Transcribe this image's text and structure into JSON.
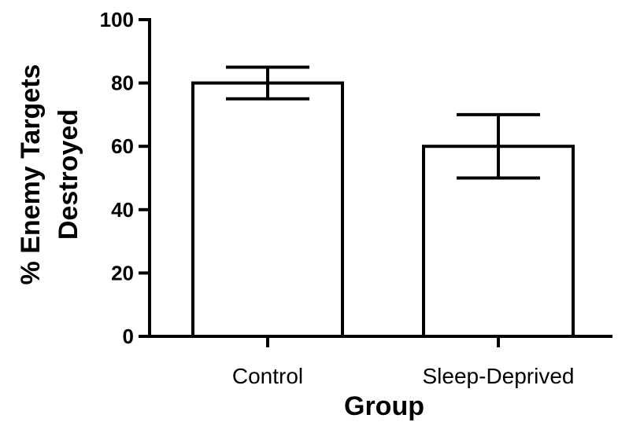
{
  "chart_data": {
    "type": "bar",
    "title": "",
    "xlabel": "Group",
    "ylabel_lines": [
      "% Enemy Targets",
      "Destroyed"
    ],
    "categories": [
      "Control",
      "Sleep-Deprived"
    ],
    "values": [
      80,
      60
    ],
    "error_low": [
      75,
      50
    ],
    "error_high": [
      85,
      70
    ],
    "ylim": [
      0,
      100
    ],
    "yticks": [
      0,
      20,
      40,
      60,
      80,
      100
    ],
    "grid": false,
    "legend": "none",
    "bar_fill": "#ffffff",
    "stroke_color": "#000000"
  }
}
